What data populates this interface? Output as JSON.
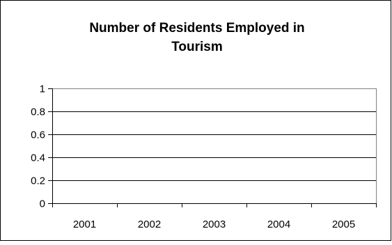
{
  "chart_data": {
    "type": "line",
    "title": "Number of Residents Employed in Tourism",
    "title_lines": [
      "Number of Residents Employed in",
      "Tourism"
    ],
    "xlabel": "",
    "ylabel": "",
    "categories": [
      "2001",
      "2002",
      "2003",
      "2004",
      "2005"
    ],
    "y_ticks": [
      "0",
      "0.2",
      "0.4",
      "0.6",
      "0.8",
      "1"
    ],
    "y_tick_values": [
      0,
      0.2,
      0.4,
      0.6,
      0.8,
      1
    ],
    "ylim": [
      0,
      1
    ],
    "series": [],
    "grid": true,
    "legend": "none",
    "colors": {
      "border": "#000000",
      "plot_border": "#808080",
      "gridline": "#000000",
      "text": "#000000"
    }
  }
}
